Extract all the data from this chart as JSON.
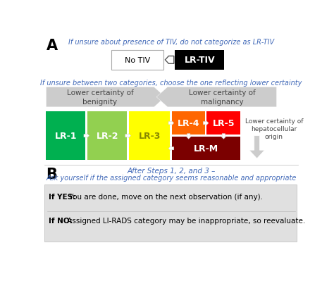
{
  "bg_color": "#ffffff",
  "blue_text_color": "#4169b8",
  "black_text_color": "#000000",
  "gray_text_color": "#404040",
  "section_A_label": "A",
  "section_B_label": "B",
  "tiv_note": "If unsure about presence of TIV, do not categorize as LR-TIV",
  "no_tiv_label": "No TIV",
  "lr_tiv_label": "LR-TIV",
  "uncertainty_note": "If unsure between two categories, choose the one reflecting lower certainty",
  "arrow_left_label1": "Lower certainty of",
  "arrow_left_label2": "benignity",
  "arrow_right_label1": "Lower certainty of",
  "arrow_right_label2": "malignancy",
  "side_label1": "Lower certainty of",
  "side_label2": "hepatocellular",
  "side_label3": "origin",
  "lr1_color": "#00b050",
  "lr2_color": "#92d050",
  "lr3_color": "#ffff00",
  "lr4_color": "#ff6600",
  "lr5_color": "#ff0000",
  "lrm_color": "#7b0000",
  "lr1_label": "LR-1",
  "lr2_label": "LR-2",
  "lr3_label": "LR-3",
  "lr4_label": "LR-4",
  "lr5_label": "LR-5",
  "lrm_label": "LR-M",
  "step4_line1": "After Steps 1, 2, and 3 –",
  "step4_line2": "Ask yourself if the assigned category seems reasonable and appropriate",
  "yes_bold": "If YES:",
  "yes_rest": " You are done, move on the next observation (if any).",
  "no_bold": "If NO:",
  "no_rest": " Assigned LI-RADS category may be inappropriate, so reevaluate.",
  "gray_arrow_color": "#cccccc",
  "bottom_box_color": "#e0e0e0",
  "arrow_white": "#ffffff",
  "divider_color": "#bbbbbb"
}
